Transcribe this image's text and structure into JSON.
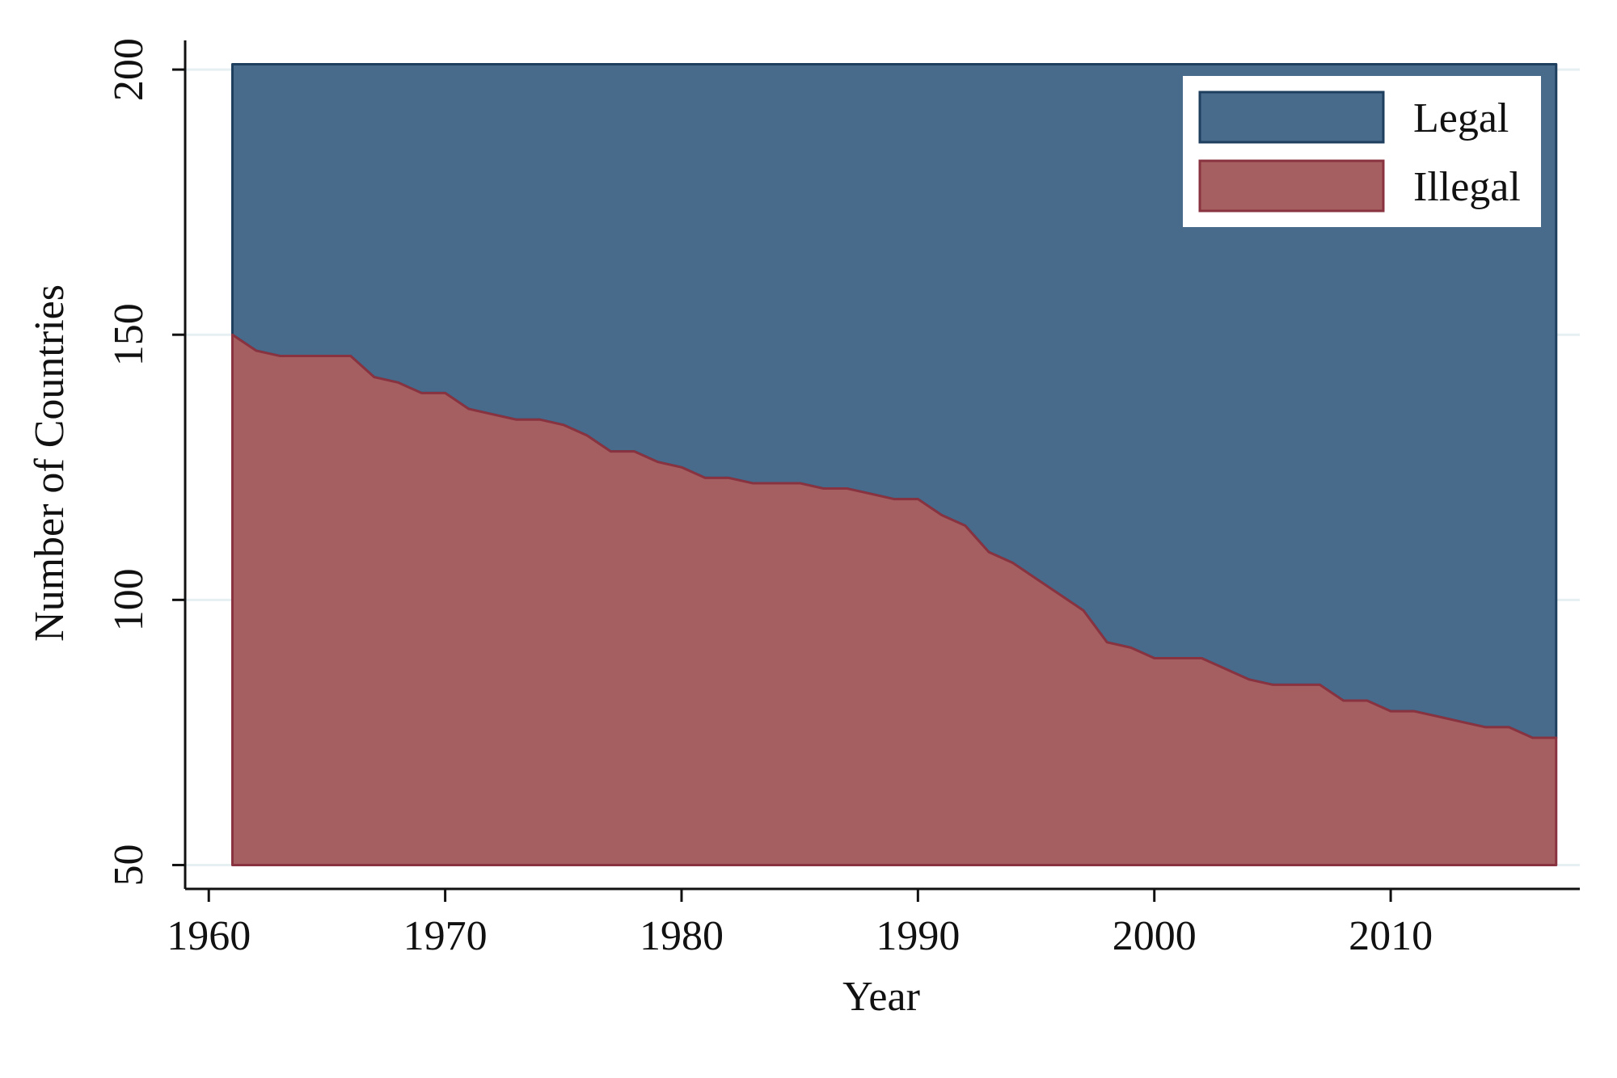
{
  "chart_data": {
    "type": "area",
    "stacked": true,
    "xlabel": "Year",
    "ylabel": "Number of Countries",
    "xlim": [
      1959,
      2018
    ],
    "ylim": [
      45.5,
      205.5
    ],
    "xticks": [
      1960,
      1970,
      1980,
      1990,
      2000,
      2010
    ],
    "yticks": [
      50,
      100,
      150,
      200
    ],
    "grid": "horizontal",
    "legend_position": "top-right",
    "x": [
      1961,
      1962,
      1963,
      1964,
      1965,
      1966,
      1967,
      1968,
      1969,
      1970,
      1971,
      1972,
      1973,
      1974,
      1975,
      1976,
      1977,
      1978,
      1979,
      1980,
      1981,
      1982,
      1983,
      1984,
      1985,
      1986,
      1987,
      1988,
      1989,
      1990,
      1991,
      1992,
      1993,
      1994,
      1995,
      1996,
      1997,
      1998,
      1999,
      2000,
      2001,
      2002,
      2003,
      2004,
      2005,
      2006,
      2007,
      2008,
      2009,
      2010,
      2011,
      2012,
      2013,
      2014,
      2015,
      2016,
      2017
    ],
    "series": [
      {
        "name": "Illegal",
        "color": "#a55f61",
        "edge_color": "#8a3340",
        "baseline": 50,
        "values": [
          150,
          147,
          146,
          146,
          146,
          146,
          142,
          141,
          139,
          139,
          136,
          135,
          134,
          134,
          133,
          131,
          128,
          128,
          126,
          125,
          123,
          123,
          122,
          122,
          122,
          121,
          121,
          120,
          119,
          119,
          116,
          114,
          109,
          107,
          104,
          101,
          98,
          92,
          91,
          89,
          89,
          89,
          87,
          85,
          84,
          84,
          84,
          81,
          81,
          79,
          79,
          78,
          77,
          76,
          76,
          74,
          74
        ]
      },
      {
        "name": "Legal",
        "color": "#486b8b",
        "edge_color": "#1f3f5f",
        "top": 201
      }
    ]
  }
}
